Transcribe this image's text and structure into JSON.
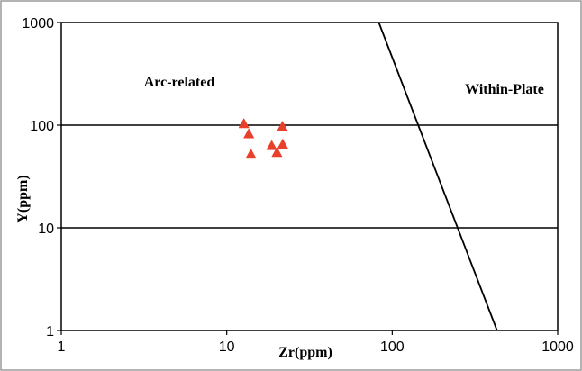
{
  "chart_data": {
    "type": "scatter",
    "title": "",
    "xlabel": "Zr(ppm)",
    "ylabel": "Y(ppm)",
    "x_scale": "log",
    "y_scale": "log",
    "xlim": [
      1,
      1000
    ],
    "ylim": [
      1,
      1000
    ],
    "x_ticks": [
      "1",
      "10",
      "100",
      "1000"
    ],
    "y_ticks": [
      "1",
      "10",
      "100",
      "1000"
    ],
    "grid": "horizontal major gridlines",
    "legend": "none",
    "regions": [
      {
        "label": "Arc-related"
      },
      {
        "label": "Within-Plate"
      }
    ],
    "boundary_line": {
      "x": [
        83,
        430
      ],
      "y": [
        1000,
        1
      ]
    },
    "marker": {
      "shape": "triangle",
      "color": "#e8402a"
    },
    "points": [
      {
        "x": 12.7,
        "y": 103
      },
      {
        "x": 13.6,
        "y": 82
      },
      {
        "x": 14.0,
        "y": 52
      },
      {
        "x": 18.7,
        "y": 63
      },
      {
        "x": 20.1,
        "y": 54
      },
      {
        "x": 21.7,
        "y": 97
      },
      {
        "x": 21.8,
        "y": 65
      }
    ]
  }
}
